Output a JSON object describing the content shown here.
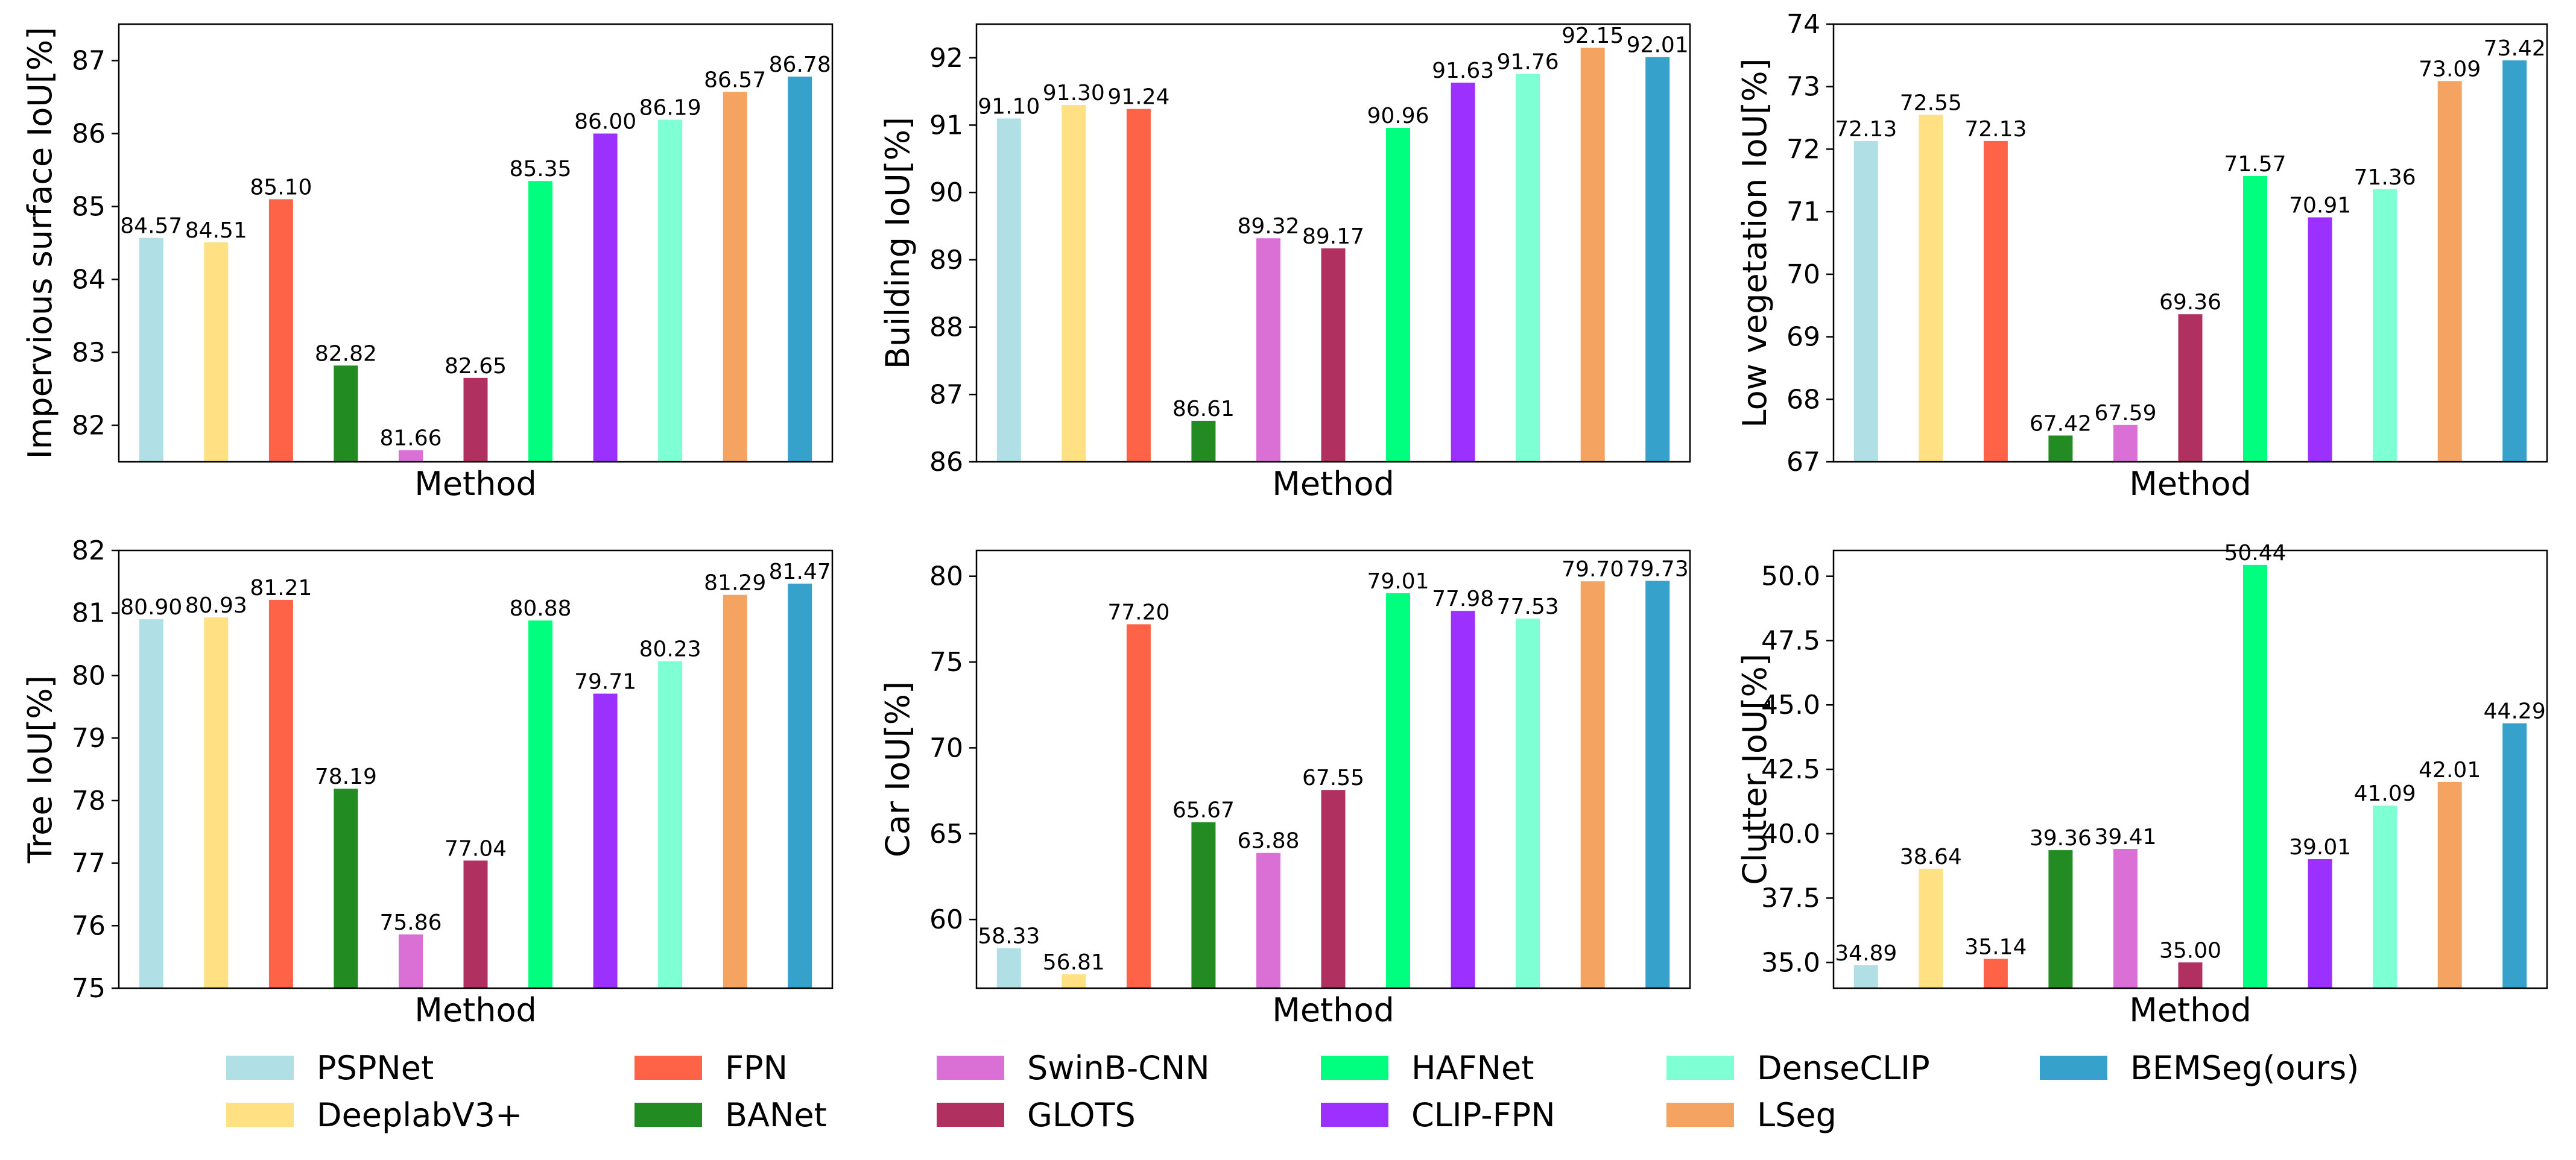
{
  "legend": {
    "position": "bottom",
    "methods": [
      {
        "name": "PSPNet",
        "color": "#b0e0e6"
      },
      {
        "name": "DeeplabV3+",
        "color": "#ffe082"
      },
      {
        "name": "FPN",
        "color": "#ff6347"
      },
      {
        "name": "BANet",
        "color": "#228b22"
      },
      {
        "name": "SwinB-CNN",
        "color": "#da70d6"
      },
      {
        "name": "GLOTS",
        "color": "#b03060"
      },
      {
        "name": "HAFNet",
        "color": "#00ff7f"
      },
      {
        "name": "CLIP-FPN",
        "color": "#9b30ff"
      },
      {
        "name": "DenseCLIP",
        "color": "#7fffd4"
      },
      {
        "name": "LSeg",
        "color": "#f4a460"
      },
      {
        "name": "BEMSeg(ours)",
        "color": "#36a2cc"
      }
    ]
  },
  "chart_data": [
    {
      "type": "bar",
      "xlabel": "Method",
      "ylabel": "Impervious surface IoU[%]",
      "ylim": [
        81.5,
        87.5
      ],
      "yticks": [
        82,
        83,
        84,
        85,
        86,
        87
      ],
      "values": [
        84.57,
        84.51,
        85.1,
        82.82,
        81.66,
        82.65,
        85.35,
        86.0,
        86.19,
        86.57,
        86.78
      ],
      "labels": [
        "84.57",
        "84.51",
        "85.10",
        "82.82",
        "81.66",
        "82.65",
        "85.35",
        "86.00",
        "86.19",
        "86.57",
        "86.78"
      ]
    },
    {
      "type": "bar",
      "xlabel": "Method",
      "ylabel": "Building IoU[%]",
      "ylim": [
        86,
        92.5
      ],
      "yticks": [
        86,
        87,
        88,
        89,
        90,
        91,
        92
      ],
      "values": [
        91.1,
        91.3,
        91.24,
        86.61,
        89.32,
        89.17,
        90.96,
        91.63,
        91.76,
        92.15,
        92.01
      ],
      "labels": [
        "91.10",
        "91.30",
        "91.24",
        "86.61",
        "89.32",
        "89.17",
        "90.96",
        "91.63",
        "91.76",
        "92.15",
        "92.01"
      ]
    },
    {
      "type": "bar",
      "xlabel": "Method",
      "ylabel": "Low vegetation IoU[%]",
      "ylim": [
        67,
        74
      ],
      "yticks": [
        67,
        68,
        69,
        70,
        71,
        72,
        73,
        74
      ],
      "values": [
        72.13,
        72.55,
        72.13,
        67.42,
        67.59,
        69.36,
        71.57,
        70.91,
        71.36,
        73.09,
        73.42
      ],
      "labels": [
        "72.13",
        "72.55",
        "72.13",
        "67.42",
        "67.59",
        "69.36",
        "71.57",
        "70.91",
        "71.36",
        "73.09",
        "73.42"
      ]
    },
    {
      "type": "bar",
      "xlabel": "Method",
      "ylabel": "Tree IoU[%]",
      "ylim": [
        75,
        82
      ],
      "yticks": [
        75,
        76,
        77,
        78,
        79,
        80,
        81,
        82
      ],
      "values": [
        80.9,
        80.93,
        81.21,
        78.19,
        75.86,
        77.04,
        80.88,
        79.71,
        80.23,
        81.29,
        81.47
      ],
      "labels": [
        "80.90",
        "80.93",
        "81.21",
        "78.19",
        "75.86",
        "77.04",
        "80.88",
        "79.71",
        "80.23",
        "81.29",
        "81.47"
      ]
    },
    {
      "type": "bar",
      "xlabel": "Method",
      "ylabel": "Car IoU[%]",
      "ylim": [
        56,
        81.5
      ],
      "yticks": [
        60,
        65,
        70,
        75,
        80
      ],
      "values": [
        58.33,
        56.81,
        77.2,
        65.67,
        63.88,
        67.55,
        79.01,
        77.98,
        77.53,
        79.7,
        79.73
      ],
      "labels": [
        "58.33",
        "56.81",
        "77.20",
        "65.67",
        "63.88",
        "67.55",
        "79.01",
        "77.98",
        "77.53",
        "79.70",
        "79.73"
      ]
    },
    {
      "type": "bar",
      "xlabel": "Method",
      "ylabel": "Clutter IoU[%]",
      "ylim": [
        34,
        51
      ],
      "yticks": [
        "35.0",
        "37.5",
        "40.0",
        "42.5",
        "45.0",
        "47.5",
        "50.0"
      ],
      "values": [
        34.89,
        38.64,
        35.14,
        39.36,
        39.41,
        35.0,
        50.44,
        39.01,
        41.09,
        42.01,
        44.29
      ],
      "labels": [
        "34.89",
        "38.64",
        "35.14",
        "39.36",
        "39.41",
        "35.00",
        "50.44",
        "39.01",
        "41.09",
        "42.01",
        "44.29"
      ]
    }
  ]
}
